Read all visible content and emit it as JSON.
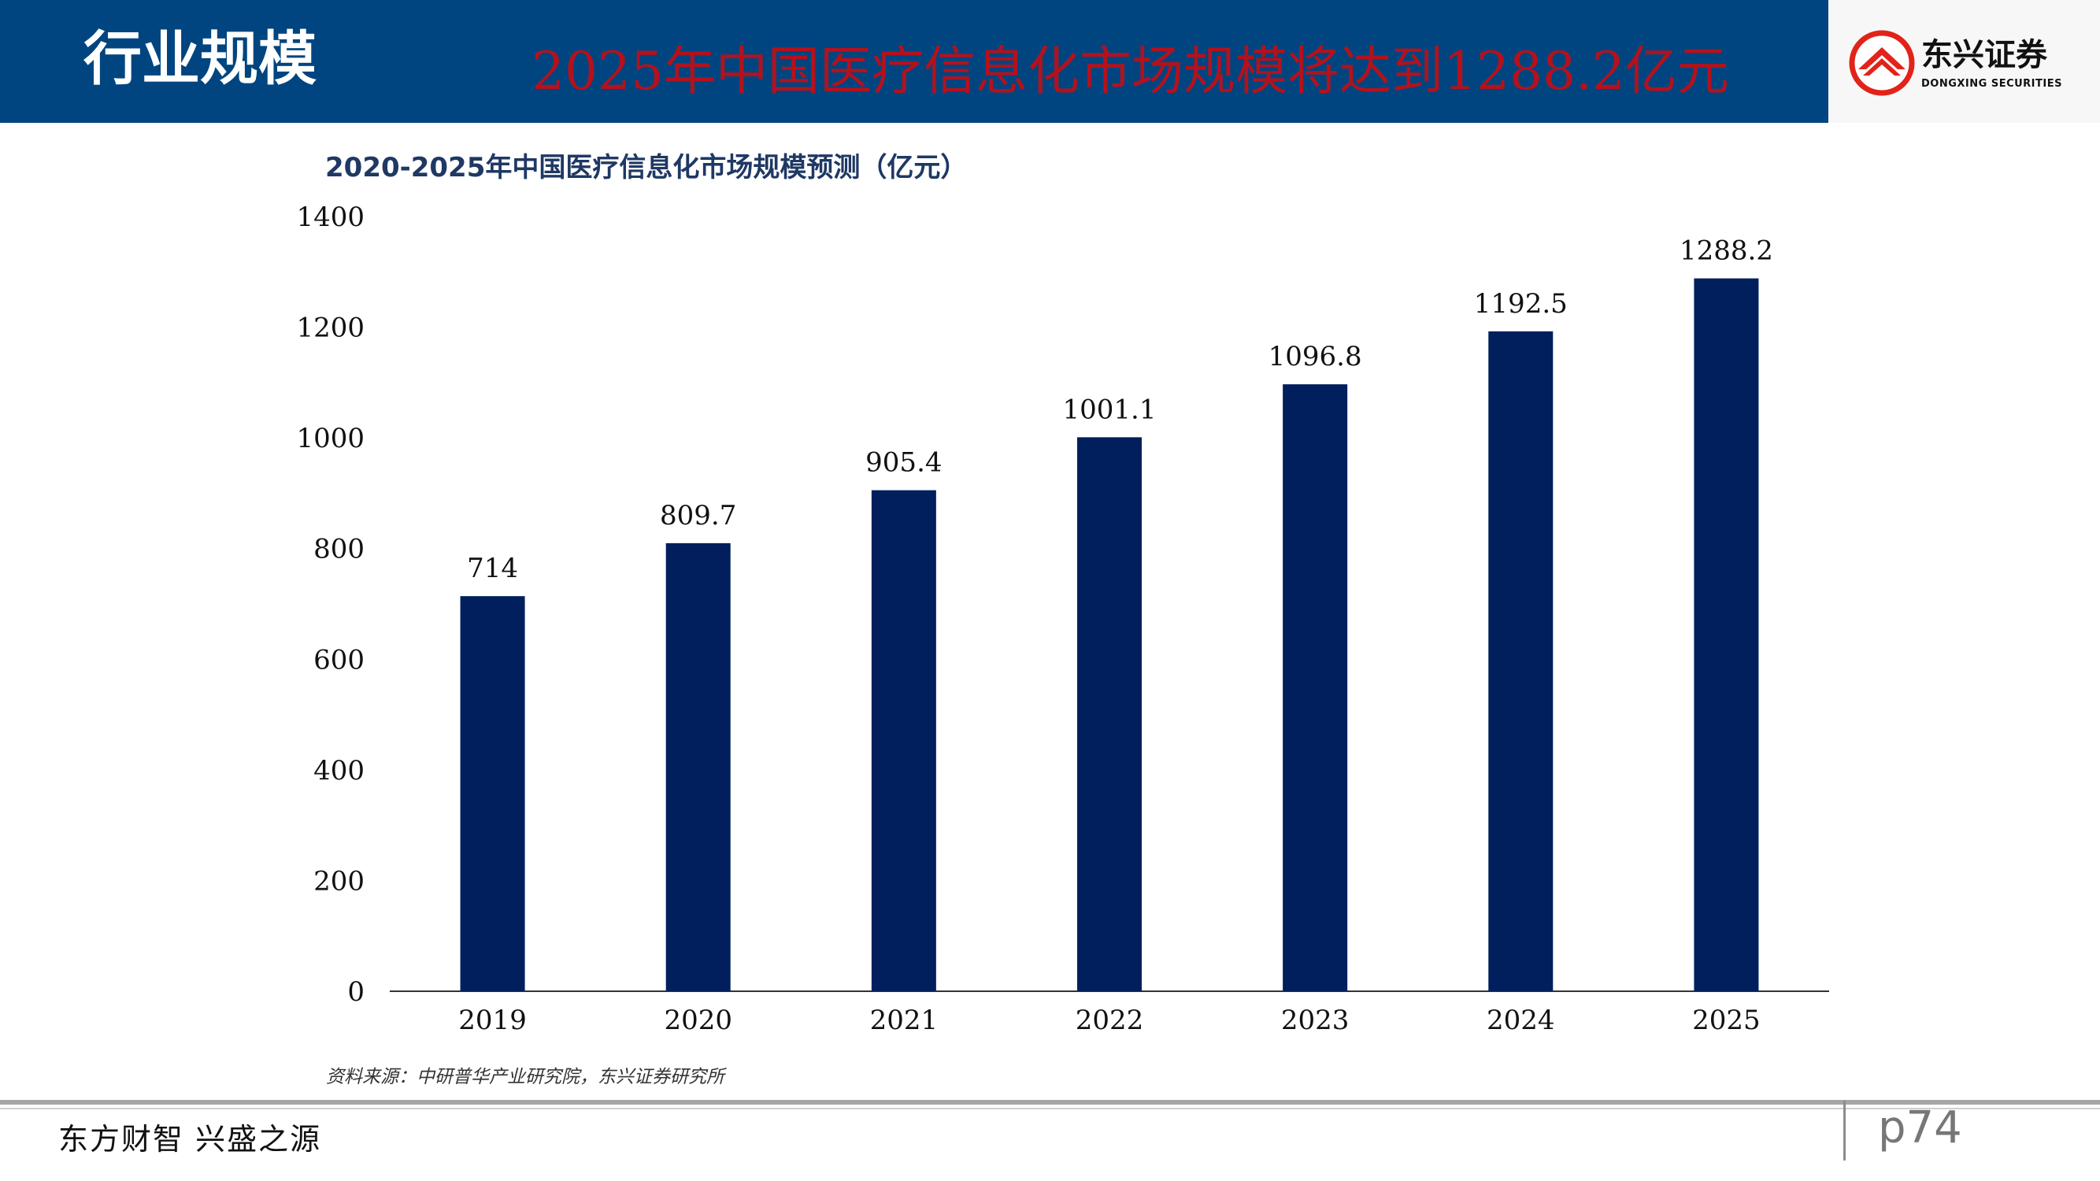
{
  "header": {
    "section_title": "行业规模",
    "headline": "2025年中国医疗信息化市场规模将达到1288.2亿元",
    "logo_name": "东兴证券",
    "logo_subtitle": "DONGXING SECURITIES"
  },
  "colors": {
    "header_bg": "#004580",
    "headline_red": "#b3121d",
    "bar_navy": "#001f5c",
    "logo_red": "#e2231a"
  },
  "chart_data": {
    "type": "bar",
    "title": "2020-2025年中国医疗信息化市场规模预测（亿元）",
    "categories": [
      "2019",
      "2020",
      "2021",
      "2022",
      "2023",
      "2024",
      "2025"
    ],
    "values": [
      714,
      809.7,
      905.4,
      1001.1,
      1096.8,
      1192.5,
      1288.2
    ],
    "data_labels": [
      "714",
      "809.7",
      "905.4",
      "1001.1",
      "1096.8",
      "1192.5",
      "1288.2"
    ],
    "ylim": [
      0,
      1400
    ],
    "yticks": [
      0,
      200,
      400,
      600,
      800,
      1000,
      1200,
      1400
    ],
    "xlabel": "",
    "ylabel": "",
    "grid": false,
    "legend": "none",
    "bar_color": "#001f5c"
  },
  "source": "资料来源：中研普华产业研究院，东兴证券研究所",
  "footer": {
    "slogan": "东方财智 兴盛之源",
    "page": "p74"
  }
}
